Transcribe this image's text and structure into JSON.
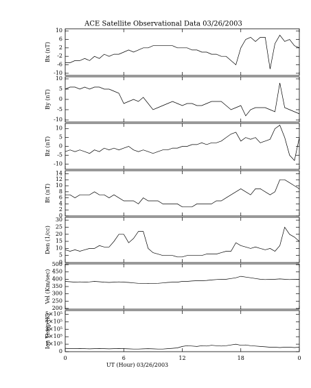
{
  "chart_data": {
    "type": "line",
    "title": "ACE Satellite Observational Data   03/26/2003",
    "x_label": "UT (Hour)   03/26/2003",
    "xlim": [
      0,
      24
    ],
    "xticks": [
      0,
      6,
      12,
      18,
      {
        "value": 24,
        "label": "0"
      }
    ],
    "x": [
      0,
      0.5,
      1,
      1.5,
      2,
      2.5,
      3,
      3.5,
      4,
      4.5,
      5,
      5.5,
      6,
      6.5,
      7,
      7.5,
      8,
      8.5,
      9,
      9.5,
      10,
      10.5,
      11,
      11.5,
      12,
      12.5,
      13,
      13.5,
      14,
      14.5,
      15,
      15.5,
      16,
      16.5,
      17,
      17.5,
      18,
      18.5,
      19,
      19.5,
      20,
      20.5,
      21,
      21.5,
      22,
      22.5,
      23,
      23.5,
      24
    ],
    "panels": [
      {
        "y_label": "Bx (nT)",
        "ylim": [
          -11,
          11
        ],
        "yticks": [
          -10,
          -6,
          -2,
          2,
          6,
          10
        ],
        "values": [
          -5,
          -5,
          -4,
          -4,
          -3,
          -4,
          -2,
          -3,
          -1,
          -2,
          -1,
          -1,
          0,
          1,
          0,
          1,
          2,
          2,
          3,
          3,
          3,
          3,
          3,
          2,
          2,
          2,
          1,
          1,
          0,
          0,
          -1,
          -1,
          -2,
          -2,
          -4,
          -6,
          2,
          6,
          7,
          5,
          7,
          7,
          -8,
          4,
          8,
          5,
          6,
          3,
          2
        ]
      },
      {
        "y_label": "By (nT)",
        "ylim": [
          -11,
          11
        ],
        "yticks": [
          -10,
          -5,
          0,
          5,
          10
        ],
        "values": [
          5,
          6,
          6,
          5,
          6,
          5,
          6,
          6,
          5,
          5,
          4,
          3,
          -2,
          -1,
          0,
          -1,
          1,
          -2,
          -5,
          -4,
          -3,
          -2,
          -1,
          -2,
          -3,
          -2,
          -2,
          -3,
          -3,
          -2,
          -1,
          -1,
          -1,
          -3,
          -5,
          -4,
          -3,
          -8,
          -5,
          -4,
          -4,
          -4,
          -5,
          -6,
          8,
          -4,
          -5,
          -6,
          -7
        ]
      },
      {
        "y_label": "Bz (nT)",
        "ylim": [
          -13,
          13
        ],
        "yticks": [
          -10,
          -5,
          0,
          5,
          10
        ],
        "values": [
          -3,
          -2,
          -3,
          -2,
          -3,
          -4,
          -2,
          -3,
          -1,
          -2,
          -1,
          -2,
          -1,
          0,
          -2,
          -3,
          -2,
          -3,
          -4,
          -3,
          -2,
          -2,
          -1,
          -1,
          0,
          0,
          1,
          1,
          2,
          1,
          2,
          2,
          3,
          5,
          7,
          8,
          3,
          5,
          4,
          5,
          2,
          3,
          4,
          10,
          12,
          5,
          -5,
          -8,
          5
        ]
      },
      {
        "y_label": "Bt (nT)",
        "ylim": [
          0,
          15
        ],
        "yticks": [
          0,
          2,
          4,
          6,
          8,
          10,
          12,
          14
        ],
        "values": [
          7,
          7,
          6,
          7,
          7,
          7,
          8,
          7,
          7,
          6,
          7,
          6,
          5,
          5,
          5,
          4,
          6,
          5,
          5,
          5,
          4,
          4,
          4,
          4,
          3,
          3,
          3,
          4,
          4,
          4,
          4,
          5,
          5,
          6,
          7,
          8,
          9,
          8,
          7,
          9,
          9,
          8,
          7,
          8,
          12,
          12,
          11,
          10,
          9
        ]
      },
      {
        "y_label": "Den (1/cc)",
        "ylim": [
          0,
          32
        ],
        "yticks": [
          0,
          5,
          10,
          15,
          20,
          25,
          30
        ],
        "values": [
          9,
          8,
          9,
          8,
          9,
          10,
          10,
          12,
          11,
          11,
          15,
          20,
          20,
          14,
          17,
          22,
          22,
          10,
          7,
          6,
          5,
          5,
          5,
          4,
          4,
          5,
          5,
          5,
          5,
          6,
          6,
          6,
          7,
          8,
          8,
          14,
          12,
          11,
          10,
          11,
          10,
          9,
          10,
          8,
          12,
          25,
          20,
          18,
          15
        ]
      },
      {
        "y_label": "Vel (Km/sec)",
        "ylim": [
          195,
          505
        ],
        "yticks": [
          200,
          250,
          300,
          350,
          400,
          450,
          500
        ],
        "values": [
          385,
          383,
          380,
          382,
          380,
          382,
          385,
          383,
          380,
          378,
          380,
          382,
          380,
          378,
          375,
          372,
          370,
          372,
          370,
          372,
          375,
          378,
          380,
          380,
          385,
          385,
          388,
          390,
          390,
          392,
          395,
          398,
          400,
          400,
          405,
          410,
          420,
          415,
          410,
          405,
          400,
          398,
          400,
          400,
          402,
          400,
          398,
          400,
          400
        ]
      },
      {
        "y_label": "Ion Temp (K)",
        "ylim": [
          0,
          550000
        ],
        "yticks": [
          0,
          {
            "value": 100000,
            "label": "1×10⁵"
          },
          {
            "value": 200000,
            "label": "2×10⁵"
          },
          {
            "value": 300000,
            "label": "3×10⁵"
          },
          {
            "value": 400000,
            "label": "4×10⁵"
          },
          {
            "value": 500000,
            "label": "5×10⁵"
          }
        ],
        "values": [
          45000,
          40000,
          40000,
          42000,
          40000,
          38000,
          40000,
          42000,
          40000,
          38000,
          40000,
          42000,
          40000,
          38000,
          35000,
          35000,
          38000,
          40000,
          38000,
          35000,
          35000,
          40000,
          45000,
          50000,
          70000,
          80000,
          75000,
          70000,
          80000,
          75000,
          85000,
          80000,
          75000,
          80000,
          90000,
          100000,
          85000,
          90000,
          80000,
          75000,
          70000,
          65000,
          60000,
          60000,
          55000,
          60000,
          60000,
          55000,
          60000
        ]
      }
    ]
  }
}
